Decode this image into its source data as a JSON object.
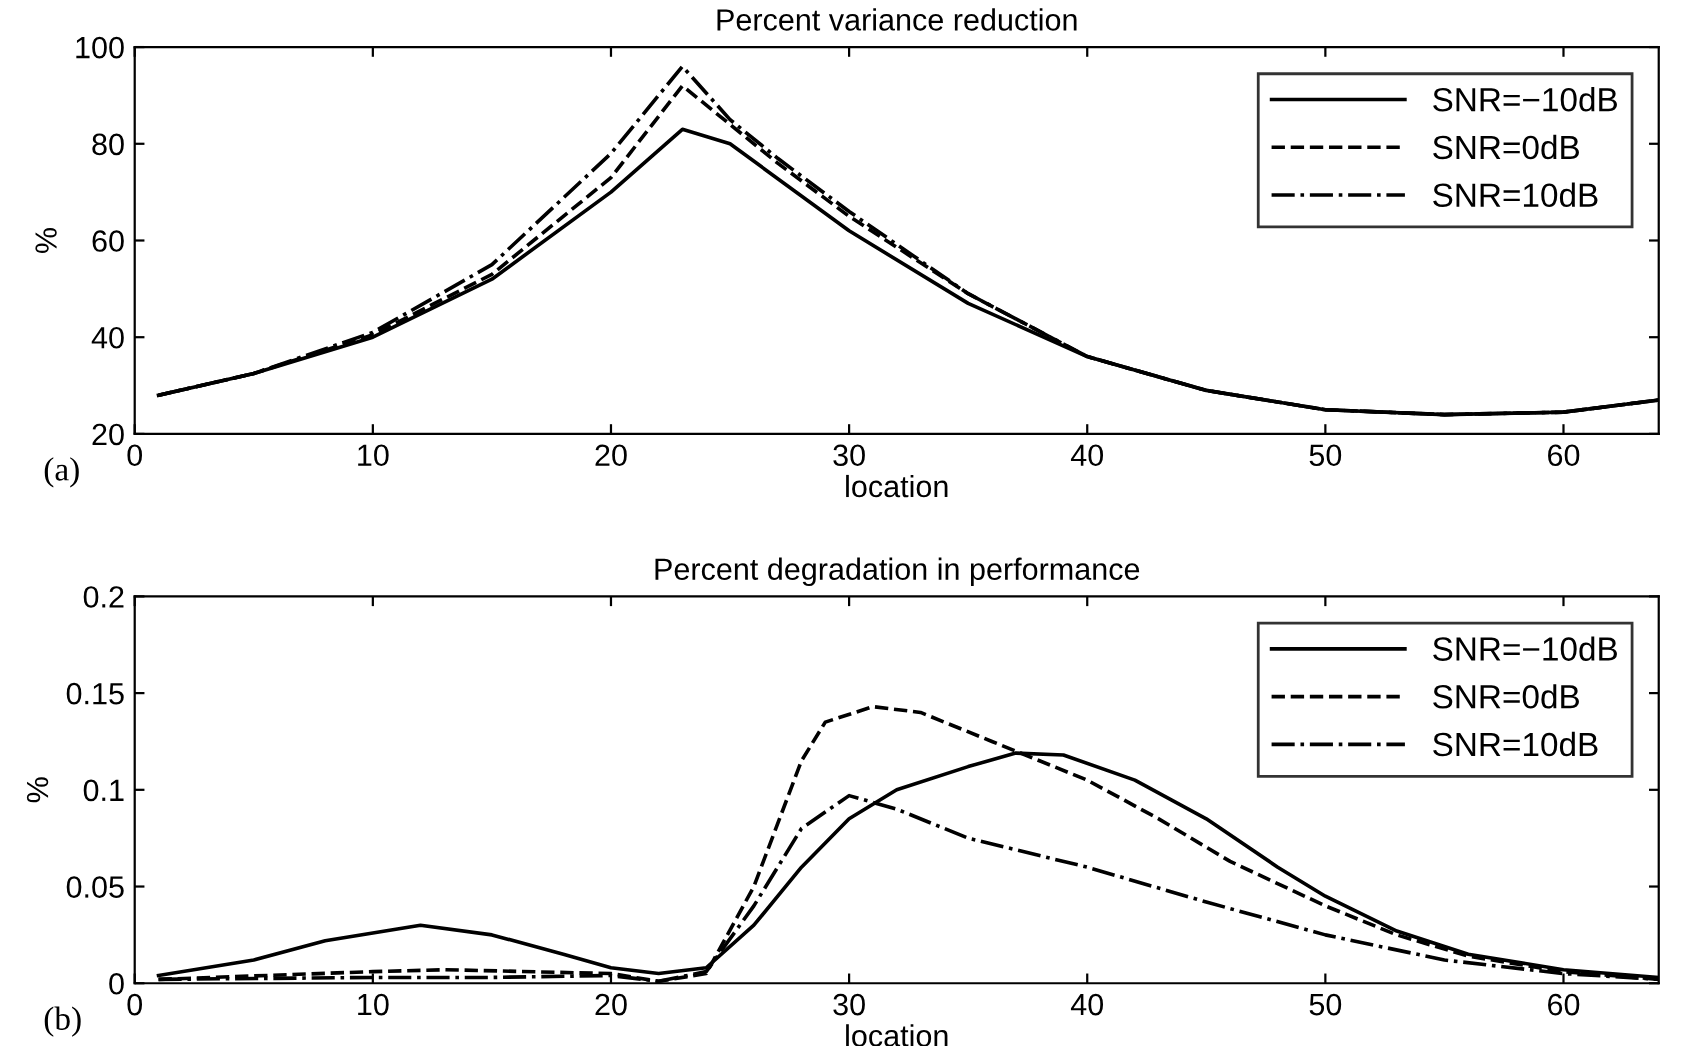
{
  "chart_data": [
    {
      "type": "line",
      "title": "Percent variance reduction",
      "xlabel": "location",
      "ylabel": "%",
      "xlim": [
        0,
        64
      ],
      "ylim": [
        20,
        100
      ],
      "xticks": [
        0,
        10,
        20,
        30,
        40,
        50,
        60
      ],
      "yticks": [
        20,
        40,
        60,
        80,
        100
      ],
      "grid": false,
      "legend": "top right",
      "marker": "none",
      "annotations": [
        "(a)"
      ],
      "series": [
        {
          "name": "SNR=−10dB",
          "color": "#000000",
          "line_style": "solid",
          "x": [
            1,
            5,
            10,
            15,
            20,
            23,
            25,
            30,
            35,
            40,
            45,
            50,
            55,
            60,
            64
          ],
          "values": [
            28,
            32.5,
            40,
            52,
            70,
            83,
            80,
            62,
            47,
            36,
            29,
            25,
            24,
            24.5,
            27
          ]
        },
        {
          "name": "SNR=0dB",
          "color": "#000000",
          "line_style": "dashed",
          "x": [
            1,
            5,
            10,
            15,
            20,
            23,
            25,
            27,
            30,
            35,
            40,
            45,
            50,
            55,
            60,
            64
          ],
          "values": [
            28,
            32.5,
            40.5,
            53,
            73,
            92,
            84,
            76,
            65,
            49,
            36,
            29,
            25,
            24,
            24.5,
            27
          ]
        },
        {
          "name": "SNR=10dB",
          "color": "#000000",
          "line_style": "dashdot",
          "x": [
            1,
            5,
            10,
            15,
            20,
            23,
            25,
            27,
            30,
            35,
            40,
            45,
            50,
            55,
            60,
            64
          ],
          "values": [
            28,
            32.5,
            41,
            55,
            78,
            96,
            85,
            77,
            66,
            49,
            36,
            29,
            25,
            24,
            24.5,
            27
          ]
        }
      ]
    },
    {
      "type": "line",
      "title": "Percent degradation in performance",
      "xlabel": "location",
      "ylabel": "%",
      "xlim": [
        0,
        64
      ],
      "ylim": [
        0,
        0.2
      ],
      "xticks": [
        0,
        10,
        20,
        30,
        40,
        50,
        60
      ],
      "yticks": [
        0,
        0.05,
        0.1,
        0.15,
        0.2
      ],
      "grid": false,
      "legend": "top right",
      "marker": "none",
      "annotations": [
        "(b)"
      ],
      "series": [
        {
          "name": "SNR=−10dB",
          "color": "#000000",
          "line_style": "solid",
          "x": [
            1,
            5,
            8,
            12,
            15,
            18,
            20,
            22,
            24,
            26,
            28,
            30,
            32,
            35,
            37,
            39,
            42,
            45,
            48,
            50,
            53,
            56,
            60,
            64
          ],
          "values": [
            0.004,
            0.012,
            0.022,
            0.03,
            0.025,
            0.015,
            0.008,
            0.005,
            0.008,
            0.03,
            0.06,
            0.085,
            0.1,
            0.112,
            0.119,
            0.118,
            0.105,
            0.085,
            0.06,
            0.045,
            0.027,
            0.015,
            0.007,
            0.003
          ]
        },
        {
          "name": "SNR=0dB",
          "color": "#000000",
          "line_style": "dashed",
          "x": [
            1,
            10,
            13,
            20,
            22,
            24,
            26,
            28,
            29,
            31,
            33,
            36,
            40,
            43,
            46,
            50,
            53,
            56,
            60,
            64
          ],
          "values": [
            0.002,
            0.006,
            0.007,
            0.005,
            0.001,
            0.005,
            0.05,
            0.115,
            0.135,
            0.143,
            0.14,
            0.125,
            0.105,
            0.085,
            0.063,
            0.04,
            0.025,
            0.014,
            0.006,
            0.002
          ]
        },
        {
          "name": "SNR=10dB",
          "color": "#000000",
          "line_style": "dashdot",
          "x": [
            1,
            10,
            15,
            20,
            22,
            24,
            26,
            28,
            30,
            32,
            35,
            40,
            45,
            50,
            55,
            60,
            64
          ],
          "values": [
            0.002,
            0.003,
            0.003,
            0.004,
            0.001,
            0.006,
            0.04,
            0.08,
            0.097,
            0.09,
            0.075,
            0.06,
            0.042,
            0.025,
            0.012,
            0.005,
            0.002
          ]
        }
      ]
    }
  ]
}
